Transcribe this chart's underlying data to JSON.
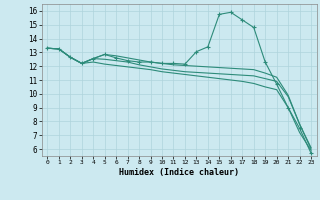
{
  "xlabel": "Humidex (Indice chaleur)",
  "background_color": "#cce9f0",
  "grid_color": "#afd4dc",
  "line_color": "#2d8b7a",
  "xlim": [
    -0.5,
    23.5
  ],
  "ylim": [
    5.5,
    16.5
  ],
  "xticks": [
    0,
    1,
    2,
    3,
    4,
    5,
    6,
    7,
    8,
    9,
    10,
    11,
    12,
    13,
    14,
    15,
    16,
    17,
    18,
    19,
    20,
    21,
    22,
    23
  ],
  "yticks": [
    6,
    7,
    8,
    9,
    10,
    11,
    12,
    13,
    14,
    15,
    16
  ],
  "lines": [
    {
      "x": [
        0,
        1,
        2,
        3,
        4,
        5,
        6,
        7,
        8,
        9,
        10,
        11,
        12,
        13,
        14,
        15,
        16,
        17,
        18,
        19,
        20,
        21,
        22,
        23
      ],
      "y": [
        13.3,
        13.25,
        12.65,
        12.2,
        12.55,
        12.85,
        12.6,
        12.4,
        12.3,
        12.3,
        12.2,
        12.2,
        12.15,
        13.05,
        13.4,
        15.75,
        15.9,
        15.35,
        14.8,
        12.3,
        10.7,
        9.0,
        7.5,
        5.7
      ],
      "has_markers": true
    },
    {
      "x": [
        0,
        1,
        2,
        3,
        4,
        5,
        6,
        7,
        8,
        9,
        10,
        11,
        12,
        13,
        14,
        15,
        16,
        17,
        18,
        19,
        20,
        21,
        22,
        23
      ],
      "y": [
        13.3,
        13.25,
        12.65,
        12.2,
        12.3,
        12.15,
        12.05,
        11.95,
        11.85,
        11.75,
        11.6,
        11.5,
        11.4,
        11.3,
        11.2,
        11.1,
        11.0,
        10.9,
        10.75,
        10.5,
        10.3,
        9.0,
        7.2,
        5.9
      ],
      "has_markers": false
    },
    {
      "x": [
        0,
        1,
        2,
        3,
        4,
        5,
        6,
        7,
        8,
        9,
        10,
        11,
        12,
        13,
        14,
        15,
        16,
        17,
        18,
        19,
        20,
        21,
        22,
        23
      ],
      "y": [
        13.3,
        13.25,
        12.65,
        12.2,
        12.55,
        12.5,
        12.4,
        12.3,
        12.1,
        11.95,
        11.8,
        11.7,
        11.6,
        11.55,
        11.5,
        11.45,
        11.4,
        11.35,
        11.3,
        11.1,
        10.9,
        9.8,
        7.8,
        6.1
      ],
      "has_markers": false
    },
    {
      "x": [
        0,
        1,
        2,
        3,
        4,
        5,
        6,
        7,
        8,
        9,
        10,
        11,
        12,
        13,
        14,
        15,
        16,
        17,
        18,
        19,
        20,
        21,
        22,
        23
      ],
      "y": [
        13.3,
        13.25,
        12.65,
        12.2,
        12.55,
        12.85,
        12.75,
        12.6,
        12.45,
        12.3,
        12.2,
        12.1,
        12.05,
        12.0,
        11.95,
        11.9,
        11.85,
        11.8,
        11.75,
        11.5,
        11.2,
        9.9,
        7.8,
        6.0
      ],
      "has_markers": false
    }
  ]
}
